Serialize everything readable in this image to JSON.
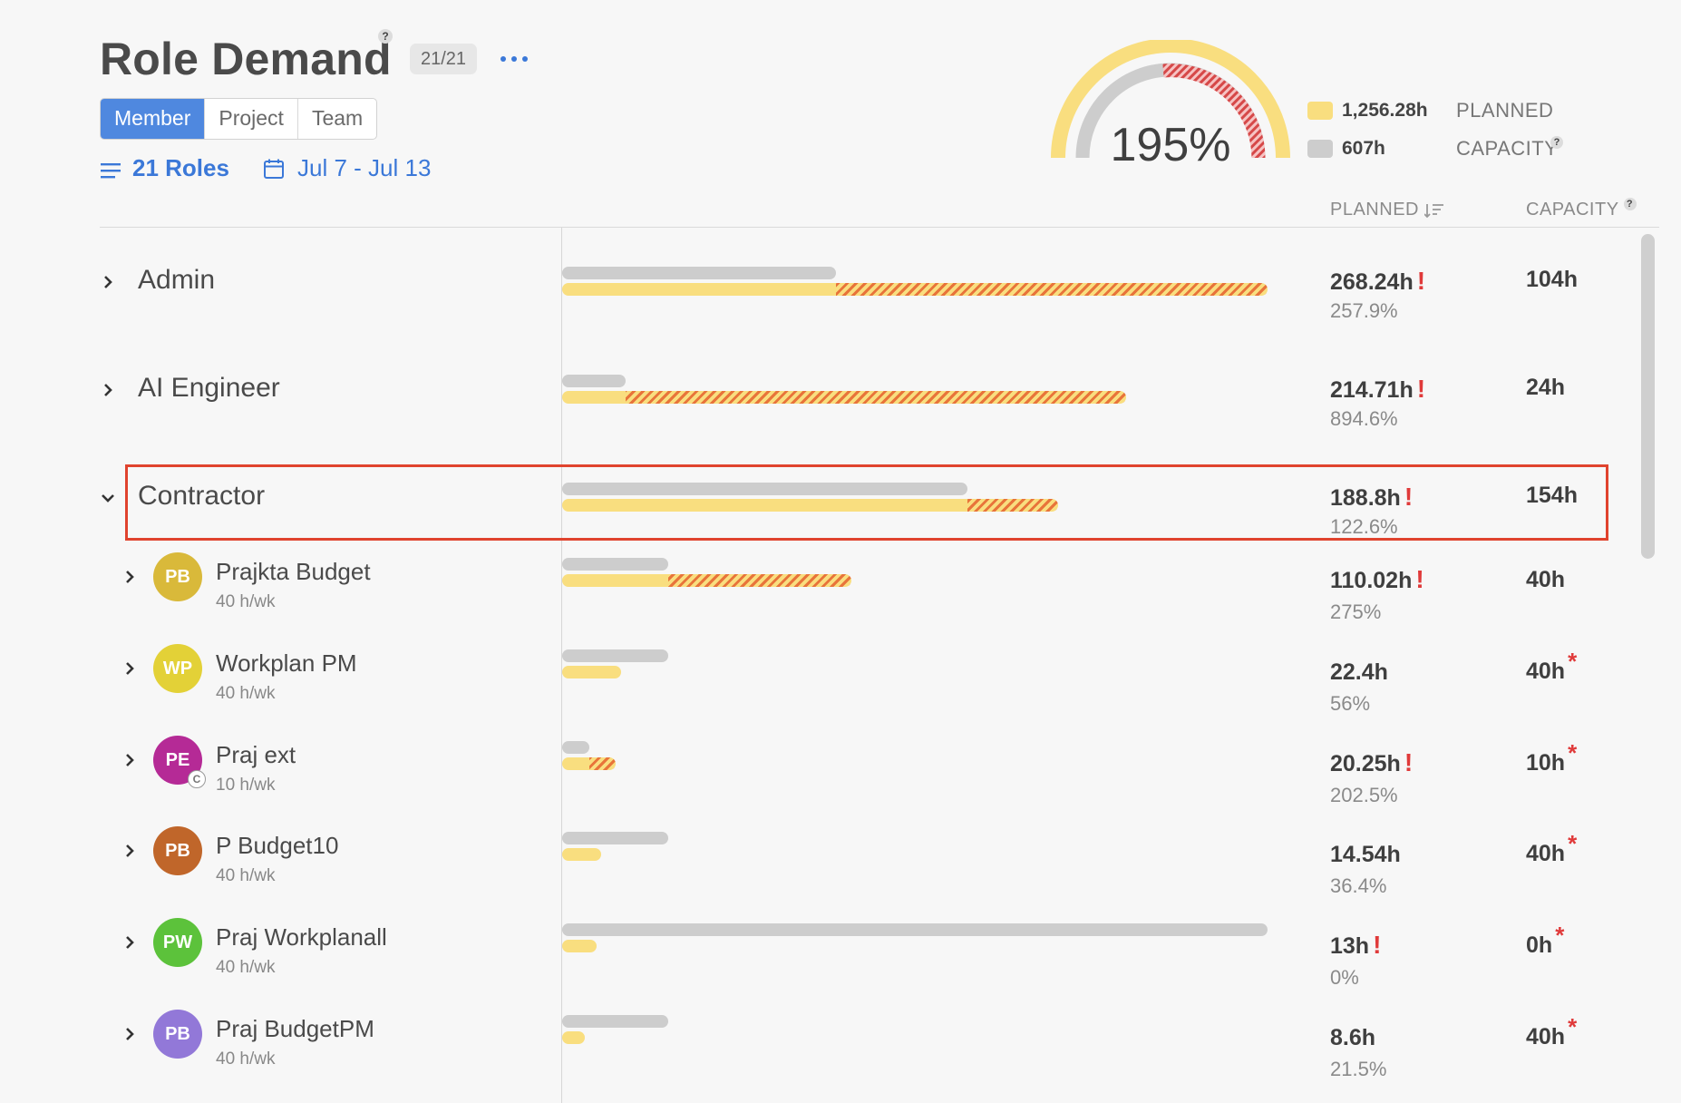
{
  "header": {
    "title": "Role Demand",
    "help": "?",
    "count_badge": "21/21"
  },
  "view_tabs": [
    {
      "label": "Member",
      "active": true
    },
    {
      "label": "Project",
      "active": false
    },
    {
      "label": "Team",
      "active": false
    }
  ],
  "filters": {
    "roles_label": "21 Roles",
    "date_range": "Jul 7 - Jul 13"
  },
  "summary": {
    "percent": "195%",
    "planned_hours": "1,256.28h",
    "capacity_hours": "607h",
    "planned_label": "PLANNED",
    "capacity_label": "CAPACITY",
    "help": "?"
  },
  "columns": {
    "planned": "PLANNED",
    "capacity": "CAPACITY",
    "help": "?"
  },
  "colors": {
    "accent": "#4f88df",
    "planned": "#f9de7f",
    "capacity": "#cdcdcd",
    "over": "#e8743a",
    "warning": "#e03a3a",
    "selection": "#e0432e"
  },
  "roles": [
    {
      "name": "Admin",
      "planned": "268.24h",
      "percent": "257.9%",
      "capacity": "104h",
      "warn": "!",
      "expanded": false,
      "capacity_frac": 0.388,
      "planned_frac": 1.0
    },
    {
      "name": "AI Engineer",
      "planned": "214.71h",
      "percent": "894.6%",
      "capacity": "24h",
      "warn": "!",
      "expanded": false,
      "capacity_frac": 0.09,
      "planned_frac": 0.8
    },
    {
      "name": "Contractor",
      "planned": "188.8h",
      "percent": "122.6%",
      "capacity": "154h",
      "warn": "!",
      "expanded": true,
      "capacity_frac": 0.575,
      "planned_frac": 0.703
    }
  ],
  "members": [
    {
      "initials": "PB",
      "name": "Prajkta Budget",
      "sub": "40 h/wk",
      "avatar_color": "#d9b93a",
      "planned": "110.02h",
      "percent": "275%",
      "capacity": "40h",
      "warn": "!",
      "asterisk": "",
      "capacity_frac": 0.15,
      "planned_frac": 0.41
    },
    {
      "initials": "WP",
      "name": "Workplan PM",
      "sub": "40 h/wk",
      "avatar_color": "#e3d137",
      "planned": "22.4h",
      "percent": "56%",
      "capacity": "40h",
      "warn": "",
      "asterisk": "*",
      "capacity_frac": 0.15,
      "planned_frac": 0.084
    },
    {
      "initials": "PE",
      "name": "Praj ext",
      "sub": "10 h/wk",
      "avatar_color": "#b52a96",
      "planned": "20.25h",
      "percent": "202.5%",
      "capacity": "10h",
      "warn": "!",
      "asterisk": "*",
      "capacity_frac": 0.038,
      "planned_frac": 0.076,
      "contractor": "C"
    },
    {
      "initials": "PB",
      "name": "P Budget10",
      "sub": "40 h/wk",
      "avatar_color": "#c0662a",
      "planned": "14.54h",
      "percent": "36.4%",
      "capacity": "40h",
      "warn": "",
      "asterisk": "*",
      "capacity_frac": 0.15,
      "planned_frac": 0.055
    },
    {
      "initials": "PW",
      "name": "Praj Workplanall",
      "sub": "40 h/wk",
      "avatar_color": "#5cc23b",
      "planned": "13h",
      "percent": "0%",
      "capacity": "0h",
      "warn": "!",
      "asterisk": "*",
      "capacity_frac": 1.0,
      "planned_frac": 0.049
    },
    {
      "initials": "PB",
      "name": "Praj BudgetPM",
      "sub": "40 h/wk",
      "avatar_color": "#9278d8",
      "planned": "8.6h",
      "percent": "21.5%",
      "capacity": "40h",
      "warn": "",
      "asterisk": "*",
      "capacity_frac": 0.15,
      "planned_frac": 0.032
    }
  ]
}
